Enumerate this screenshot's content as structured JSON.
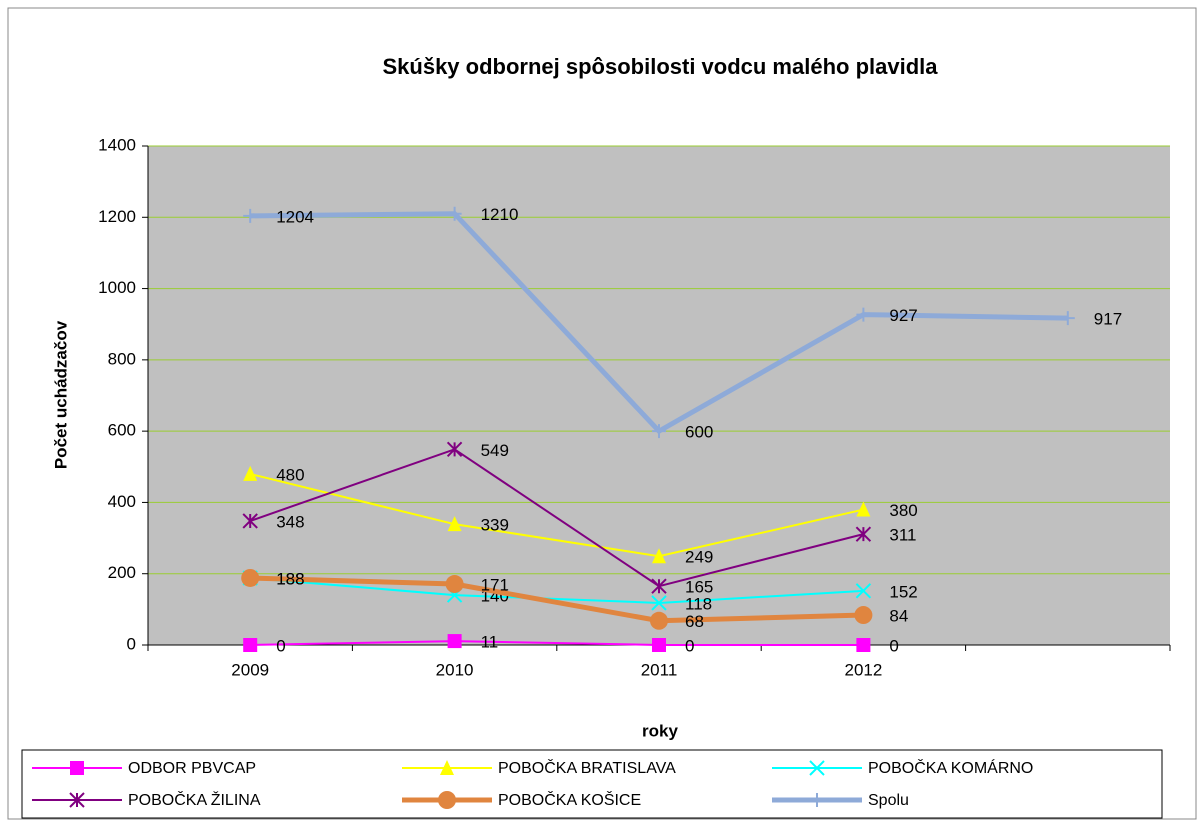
{
  "chart_data": {
    "type": "line",
    "title": "Skúšky odbornej spôsobilosti vodcu malého plavidla",
    "y_label": "Počet uchádzačov",
    "x_label": "roky",
    "categories": [
      "2009",
      "2010",
      "2011",
      "2012",
      null
    ],
    "ylim": [
      0,
      1400
    ],
    "yticks": [
      0,
      200,
      400,
      600,
      800,
      1000,
      1200,
      1400
    ],
    "grid": true,
    "series": [
      {
        "name": "ODBOR PBVCAP",
        "color": "#ff00ff",
        "marker": "square",
        "line_width": 2,
        "values": [
          0,
          11,
          0,
          0,
          null
        ]
      },
      {
        "name": "POBOČKA BRATISLAVA",
        "color": "#ffff00",
        "marker": "triangle",
        "line_width": 2,
        "values": [
          480,
          339,
          249,
          380,
          null
        ]
      },
      {
        "name": "POBOČKA KOMÁRNO",
        "color": "#00ffff",
        "marker": "x",
        "line_width": 2,
        "values": [
          188,
          140,
          118,
          152,
          null
        ]
      },
      {
        "name": "POBOČKA ŽILINA",
        "color": "#800080",
        "marker": "star",
        "line_width": 2,
        "values": [
          348,
          549,
          165,
          311,
          null
        ]
      },
      {
        "name": "POBOČKA KOŠICE",
        "color": "#e0853f",
        "marker": "circle",
        "line_width": 5,
        "values": [
          188,
          171,
          68,
          84,
          null
        ]
      },
      {
        "name": "Spolu",
        "color": "#8eaad8",
        "marker": "plus",
        "line_width": 5,
        "values": [
          1204,
          1210,
          600,
          927,
          917
        ]
      }
    ]
  }
}
